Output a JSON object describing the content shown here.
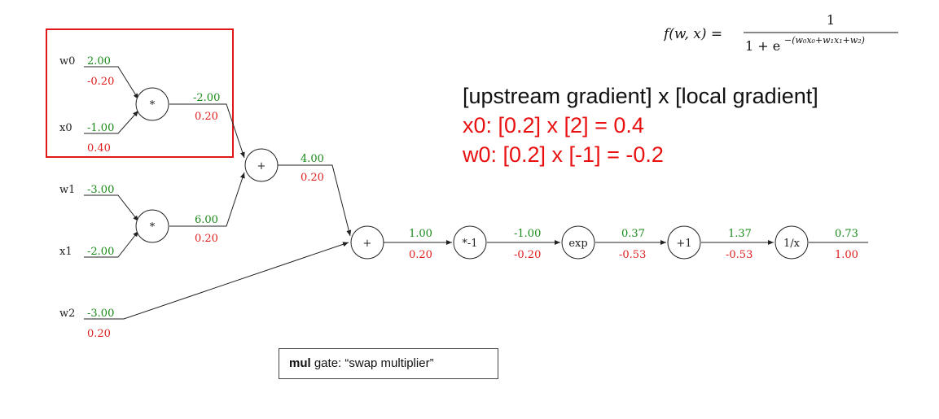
{
  "formula": {
    "lhs": "f(w, x) =",
    "numerator": "1",
    "denominator_base": "1 + e",
    "exponent": "−(w₀x₀+w₁x₁+w₂)"
  },
  "rule": {
    "line1": "[upstream gradient] x [local gradient]",
    "line2": "x0: [0.2] x [2] = 0.4",
    "line3": "w0: [0.2] x [-1] = -0.2"
  },
  "note": {
    "bold": "mul",
    "rest": " gate: “swap multiplier”"
  },
  "inputs": [
    {
      "name": "w0",
      "forward": "2.00",
      "backward": "-0.20"
    },
    {
      "name": "x0",
      "forward": "-1.00",
      "backward": "0.40"
    },
    {
      "name": "w1",
      "forward": "-3.00",
      "backward": ""
    },
    {
      "name": "x1",
      "forward": "-2.00",
      "backward": ""
    },
    {
      "name": "w2",
      "forward": "-3.00",
      "backward": "0.20"
    }
  ],
  "gates": [
    {
      "id": "mul1",
      "label": "*"
    },
    {
      "id": "mul2",
      "label": "*"
    },
    {
      "id": "add1",
      "label": "+"
    },
    {
      "id": "add2",
      "label": "+"
    },
    {
      "id": "neg",
      "label": "*-1"
    },
    {
      "id": "exp",
      "label": "exp"
    },
    {
      "id": "plus1",
      "label": "+1"
    },
    {
      "id": "inv",
      "label": "1/x"
    }
  ],
  "edges": [
    {
      "id": "mul1_out",
      "forward": "-2.00",
      "backward": "0.20"
    },
    {
      "id": "mul2_out",
      "forward": "6.00",
      "backward": "0.20"
    },
    {
      "id": "add1_out",
      "forward": "4.00",
      "backward": "0.20"
    },
    {
      "id": "add2_out",
      "forward": "1.00",
      "backward": "0.20"
    },
    {
      "id": "neg_out",
      "forward": "-1.00",
      "backward": "-0.20"
    },
    {
      "id": "exp_out",
      "forward": "0.37",
      "backward": "-0.53"
    },
    {
      "id": "plus1_out",
      "forward": "1.37",
      "backward": "-0.53"
    },
    {
      "id": "inv_out",
      "forward": "0.73",
      "backward": "1.00"
    }
  ],
  "colors": {
    "forward": "#1a8a1a",
    "backward": "#e02020",
    "highlight": "#e01818"
  }
}
